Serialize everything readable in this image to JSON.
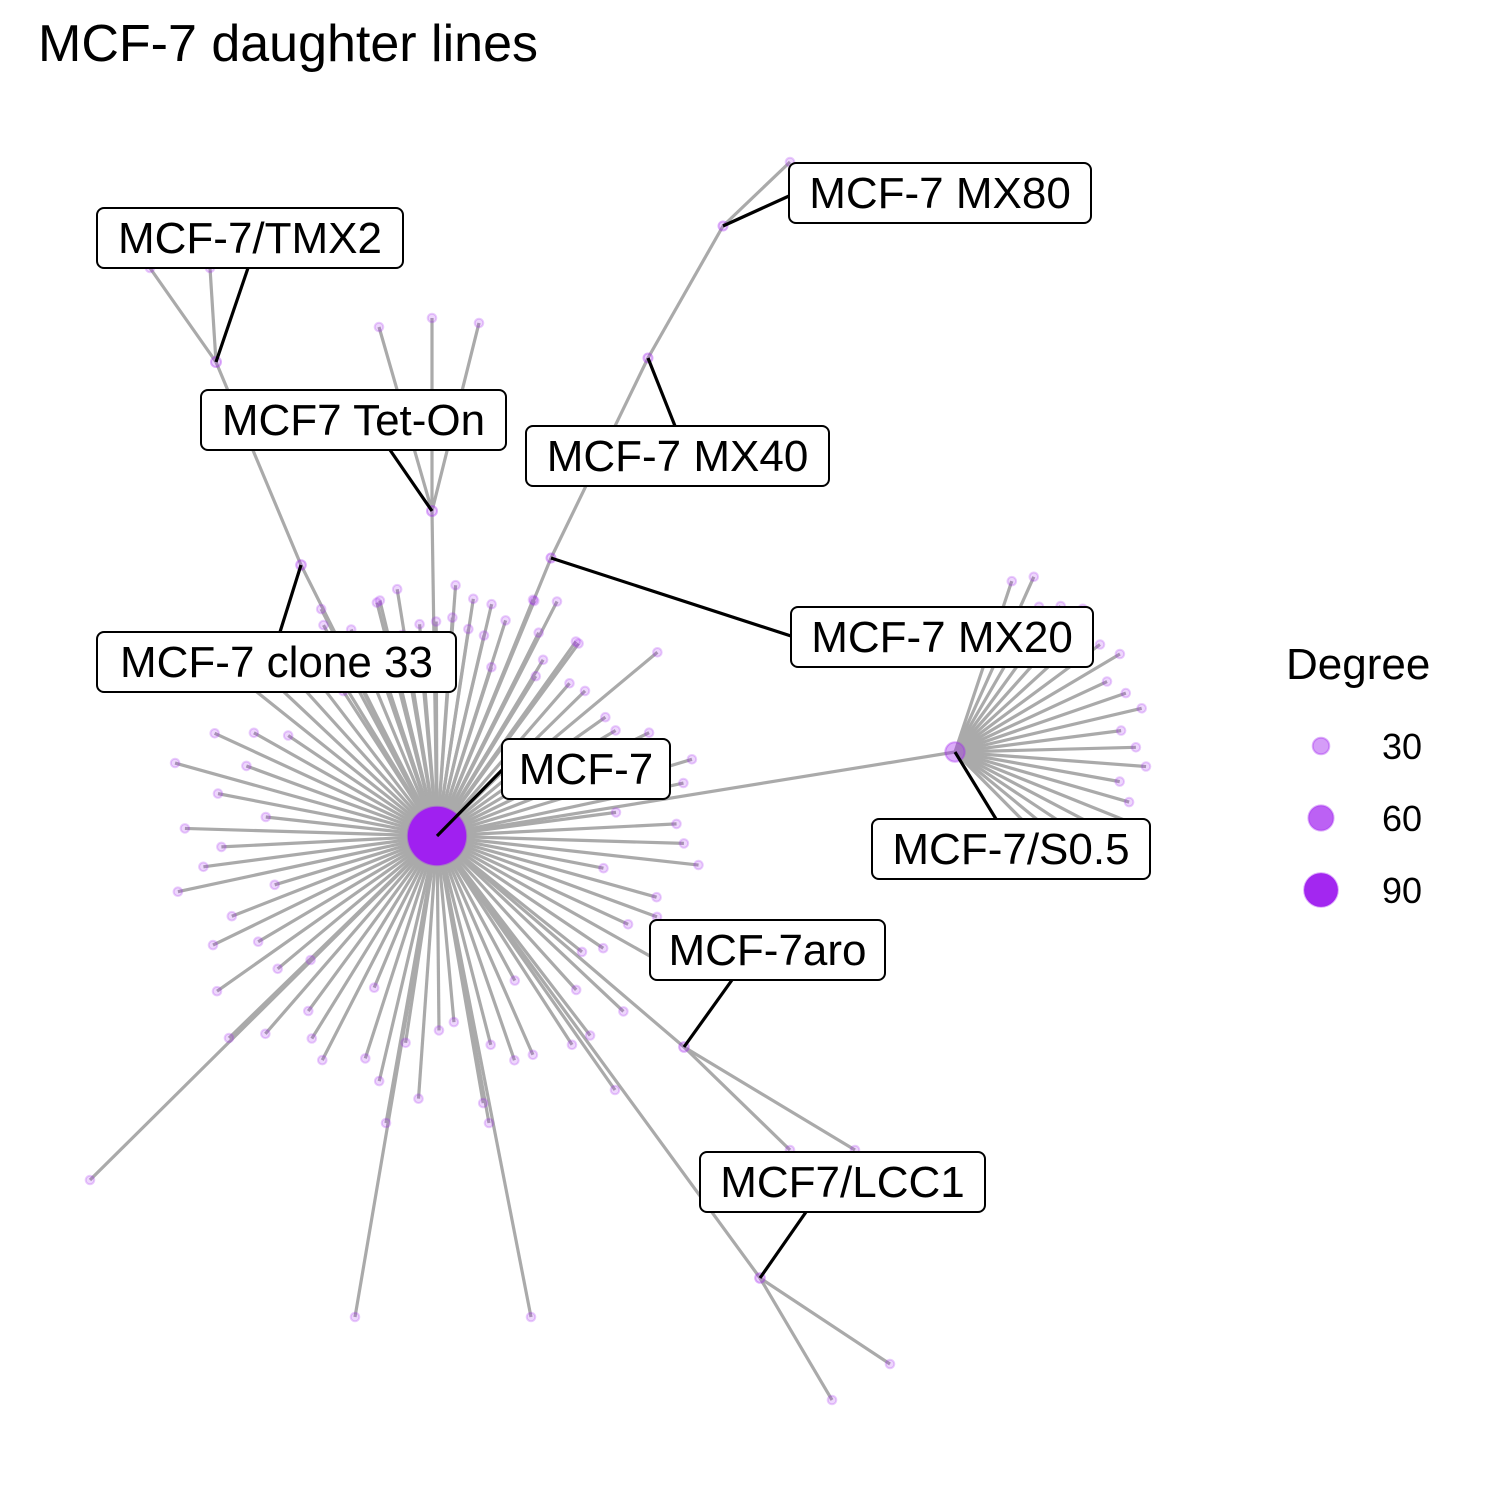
{
  "title": "MCF-7 daughter lines",
  "colors": {
    "edge": "#aaaaaa",
    "node": "#a020f0",
    "label_border": "#000000",
    "background": "#ffffff"
  },
  "legend": {
    "title": "Degree",
    "entries": [
      {
        "label": "30",
        "degree": 30
      },
      {
        "label": "60",
        "degree": 60
      },
      {
        "label": "90",
        "degree": 90
      }
    ]
  },
  "named_nodes": [
    {
      "id": "mcf7",
      "label": "MCF-7",
      "degree": 97
    },
    {
      "id": "s05",
      "label": "MCF-7/S0.5",
      "degree": 22
    },
    {
      "id": "mx20",
      "label": "MCF-7 MX20",
      "degree": 2
    },
    {
      "id": "mx40",
      "label": "MCF-7 MX40",
      "degree": 2
    },
    {
      "id": "mx80",
      "label": "MCF-7 MX80",
      "degree": 2
    },
    {
      "id": "teton",
      "label": "MCF7 Tet-On",
      "degree": 4
    },
    {
      "id": "tmx2",
      "label": "MCF-7/TMX2",
      "degree": 4
    },
    {
      "id": "clone33",
      "label": "MCF-7 clone 33",
      "degree": 3
    },
    {
      "id": "aro",
      "label": "MCF-7aro",
      "degree": 3
    },
    {
      "id": "lcc1",
      "label": "MCF7/LCC1",
      "degree": 3
    }
  ]
}
